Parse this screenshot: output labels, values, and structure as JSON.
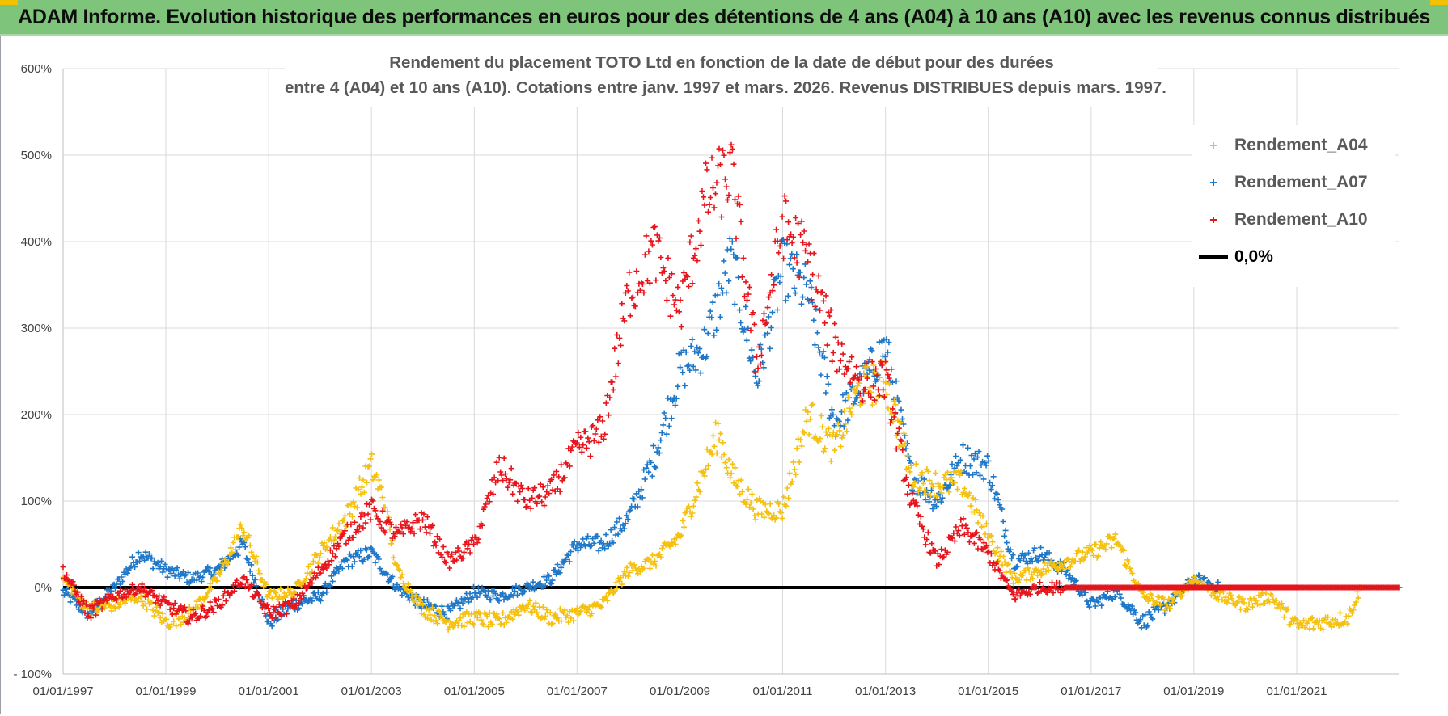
{
  "banner": {
    "title": "ADAM Informe. Evolution historique des performances en euros pour des détentions de 4 ans (A04) à 10 ans (A10) avec les revenus connus distribués"
  },
  "chart_data": {
    "type": "scatter",
    "title_line1": "Rendement du placement TOTO Ltd en fonction de la date de début pour des durées",
    "title_line2": "entre 4 (A04) et 10 ans (A10). Cotations entre janv. 1997 et mars. 2026. Revenus DISTRIBUES depuis mars. 1997.",
    "x_range": [
      "1997-01-01",
      "2023-01-01"
    ],
    "y_range": [
      -100,
      600
    ],
    "y_ticks": [
      "- 100%",
      "0%",
      "100%",
      "200%",
      "300%",
      "400%",
      "500%",
      "600%"
    ],
    "x_ticks": [
      "01/01/1997",
      "01/01/1999",
      "01/01/2001",
      "01/01/2003",
      "01/01/2005",
      "01/01/2007",
      "01/01/2009",
      "01/01/2011",
      "01/01/2013",
      "01/01/2015",
      "01/01/2017",
      "01/01/2019",
      "01/01/2021"
    ],
    "grid": true,
    "legend_position": "top-right",
    "series": [
      {
        "name": "Rendement_A04",
        "color": "#f5c00e",
        "marker": "plus",
        "points": [
          [
            "1997-01-01",
            10
          ],
          [
            "1997-07-01",
            -25
          ],
          [
            "1998-01-01",
            -20
          ],
          [
            "1998-07-01",
            -10
          ],
          [
            "1999-01-01",
            -40
          ],
          [
            "1999-07-01",
            -30
          ],
          [
            "2000-01-01",
            10
          ],
          [
            "2000-07-01",
            70
          ],
          [
            "2001-01-01",
            -10
          ],
          [
            "2001-07-01",
            -5
          ],
          [
            "2002-01-01",
            40
          ],
          [
            "2002-07-01",
            80
          ],
          [
            "2003-01-01",
            140
          ],
          [
            "2003-04-01",
            100
          ],
          [
            "2003-07-01",
            20
          ],
          [
            "2004-01-01",
            -25
          ],
          [
            "2004-07-01",
            -40
          ],
          [
            "2005-01-01",
            -35
          ],
          [
            "2005-07-01",
            -40
          ],
          [
            "2006-01-01",
            -20
          ],
          [
            "2006-07-01",
            -35
          ],
          [
            "2007-01-01",
            -30
          ],
          [
            "2007-07-01",
            -20
          ],
          [
            "2008-01-01",
            20
          ],
          [
            "2008-07-01",
            30
          ],
          [
            "2009-01-01",
            60
          ],
          [
            "2009-07-01",
            140
          ],
          [
            "2009-10-01",
            180
          ],
          [
            "2010-01-01",
            130
          ],
          [
            "2010-07-01",
            90
          ],
          [
            "2011-01-01",
            90
          ],
          [
            "2011-07-01",
            200
          ],
          [
            "2012-01-01",
            160
          ],
          [
            "2012-07-01",
            230
          ],
          [
            "2013-01-01",
            240
          ],
          [
            "2013-07-01",
            130
          ],
          [
            "2014-01-01",
            120
          ],
          [
            "2014-07-01",
            120
          ],
          [
            "2015-01-01",
            60
          ],
          [
            "2015-07-01",
            10
          ],
          [
            "2016-01-01",
            20
          ],
          [
            "2016-07-01",
            30
          ],
          [
            "2017-01-01",
            40
          ],
          [
            "2017-07-01",
            55
          ],
          [
            "2018-01-01",
            -10
          ],
          [
            "2018-07-01",
            -20
          ],
          [
            "2019-01-01",
            10
          ],
          [
            "2019-07-01",
            -10
          ],
          [
            "2020-01-01",
            -20
          ],
          [
            "2020-07-01",
            -10
          ],
          [
            "2021-01-01",
            -45
          ],
          [
            "2021-07-01",
            -40
          ],
          [
            "2022-01-01",
            -35
          ],
          [
            "2022-04-01",
            0
          ]
        ]
      },
      {
        "name": "Rendement_A07",
        "color": "#1f77c8",
        "marker": "plus",
        "points": [
          [
            "1997-01-01",
            -5
          ],
          [
            "1997-07-01",
            -30
          ],
          [
            "1998-01-01",
            0
          ],
          [
            "1998-07-01",
            40
          ],
          [
            "1999-01-01",
            20
          ],
          [
            "1999-07-01",
            10
          ],
          [
            "2000-01-01",
            20
          ],
          [
            "2000-07-01",
            50
          ],
          [
            "2001-01-01",
            -40
          ],
          [
            "2001-07-01",
            -20
          ],
          [
            "2002-01-01",
            -10
          ],
          [
            "2002-07-01",
            30
          ],
          [
            "2003-01-01",
            40
          ],
          [
            "2003-07-01",
            0
          ],
          [
            "2004-01-01",
            -20
          ],
          [
            "2004-07-01",
            -30
          ],
          [
            "2005-01-01",
            -5
          ],
          [
            "2005-07-01",
            -10
          ],
          [
            "2006-01-01",
            0
          ],
          [
            "2006-07-01",
            10
          ],
          [
            "2007-01-01",
            50
          ],
          [
            "2007-07-01",
            50
          ],
          [
            "2008-01-01",
            80
          ],
          [
            "2008-07-01",
            150
          ],
          [
            "2009-01-01",
            250
          ],
          [
            "2009-07-01",
            280
          ],
          [
            "2010-01-01",
            380
          ],
          [
            "2010-07-01",
            240
          ],
          [
            "2011-01-01",
            370
          ],
          [
            "2011-07-01",
            340
          ],
          [
            "2012-01-01",
            190
          ],
          [
            "2012-07-01",
            230
          ],
          [
            "2013-01-01",
            280
          ],
          [
            "2013-07-01",
            130
          ],
          [
            "2014-01-01",
            100
          ],
          [
            "2014-07-01",
            150
          ],
          [
            "2015-01-01",
            140
          ],
          [
            "2015-07-01",
            30
          ],
          [
            "2016-01-01",
            40
          ],
          [
            "2016-07-01",
            20
          ],
          [
            "2017-01-01",
            -20
          ],
          [
            "2017-07-01",
            -5
          ],
          [
            "2018-01-01",
            -40
          ],
          [
            "2018-07-01",
            -20
          ],
          [
            "2019-01-01",
            10
          ],
          [
            "2019-07-01",
            0
          ]
        ]
      },
      {
        "name": "Rendement_A10",
        "color": "#e8141c",
        "marker": "plus",
        "points": [
          [
            "1997-01-01",
            20
          ],
          [
            "1997-07-01",
            -30
          ],
          [
            "1998-01-01",
            -10
          ],
          [
            "1998-07-01",
            0
          ],
          [
            "1999-01-01",
            -20
          ],
          [
            "1999-07-01",
            -35
          ],
          [
            "2000-01-01",
            -20
          ],
          [
            "2000-07-01",
            10
          ],
          [
            "2001-01-01",
            -30
          ],
          [
            "2001-07-01",
            -20
          ],
          [
            "2002-01-01",
            20
          ],
          [
            "2002-07-01",
            60
          ],
          [
            "2003-01-01",
            90
          ],
          [
            "2003-07-01",
            60
          ],
          [
            "2004-01-01",
            80
          ],
          [
            "2004-07-01",
            30
          ],
          [
            "2005-01-01",
            50
          ],
          [
            "2005-07-01",
            140
          ],
          [
            "2006-01-01",
            100
          ],
          [
            "2006-07-01",
            110
          ],
          [
            "2007-01-01",
            160
          ],
          [
            "2007-07-01",
            180
          ],
          [
            "2008-01-01",
            340
          ],
          [
            "2008-07-01",
            390
          ],
          [
            "2009-01-01",
            320
          ],
          [
            "2009-07-01",
            450
          ],
          [
            "2010-01-01",
            480
          ],
          [
            "2010-07-01",
            260
          ],
          [
            "2011-01-01",
            420
          ],
          [
            "2011-07-01",
            380
          ],
          [
            "2012-01-01",
            280
          ],
          [
            "2012-07-01",
            240
          ],
          [
            "2013-01-01",
            240
          ],
          [
            "2013-07-01",
            100
          ],
          [
            "2014-01-01",
            30
          ],
          [
            "2014-07-01",
            70
          ],
          [
            "2015-01-01",
            40
          ],
          [
            "2015-07-01",
            -10
          ],
          [
            "2016-01-01",
            0
          ],
          [
            "2016-07-01",
            0
          ],
          [
            "2017-01-01",
            0
          ],
          [
            "2019-01-01",
            0
          ],
          [
            "2021-01-01",
            0
          ],
          [
            "2023-01-01",
            0
          ]
        ]
      },
      {
        "name": "0,0%",
        "color": "#000000",
        "marker": "line",
        "points": [
          [
            "1997-01-01",
            0
          ],
          [
            "2023-01-01",
            0
          ]
        ]
      }
    ]
  }
}
